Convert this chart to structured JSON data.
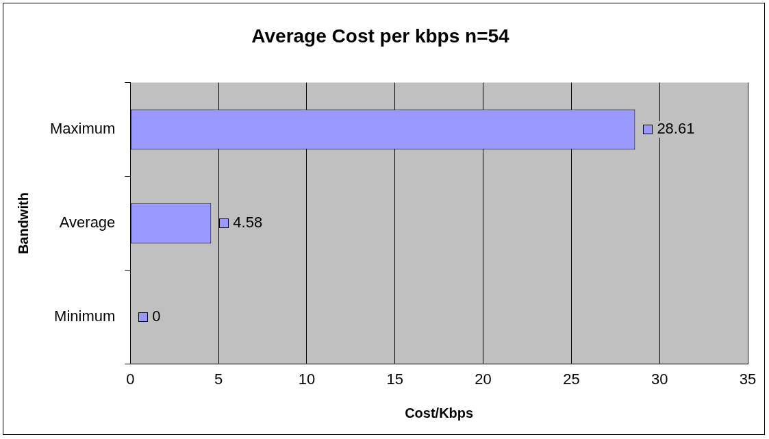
{
  "chart_data": {
    "type": "bar",
    "orientation": "horizontal",
    "title": "Average Cost per kbps n=54",
    "xlabel": "Cost/Kbps",
    "ylabel": "Bandwith",
    "categories": [
      "Maximum",
      "Average",
      "Minimum"
    ],
    "series": [
      {
        "color": "#9999ff",
        "values": [
          28.61,
          4.58,
          0
        ]
      }
    ],
    "xlim": [
      0,
      35
    ],
    "xticks": [
      0,
      5,
      10,
      15,
      20,
      25,
      30,
      35
    ],
    "grid": "x",
    "legend": false,
    "data_labels": true
  }
}
